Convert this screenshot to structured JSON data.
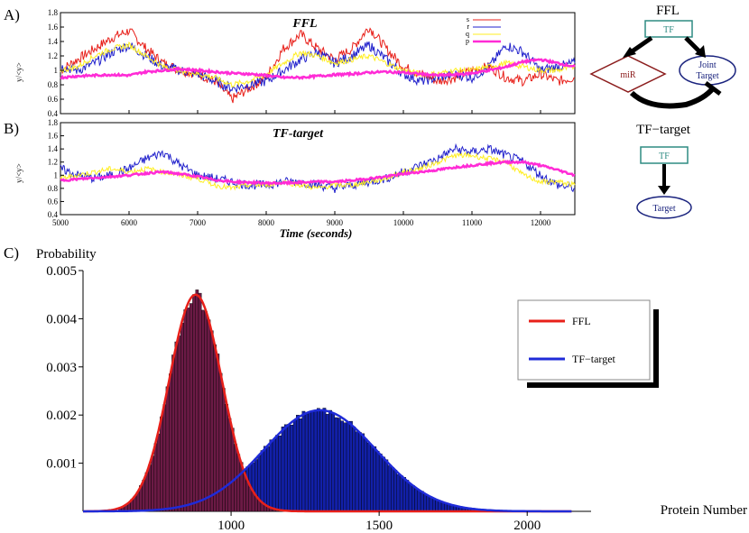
{
  "panels": {
    "a_label": "A)",
    "b_label": "B)",
    "c_label": "C)"
  },
  "network": {
    "ffl_title": "FFL",
    "tf_target_title": "TF−target",
    "tf_label": "TF",
    "mir_label": "miR",
    "joint_target_label_1": "Joint",
    "joint_target_label_2": "Target",
    "target_label": "Target",
    "colors": {
      "tf": "#2e8b82",
      "mir": "#8b1c1c",
      "target": "#1a237e"
    }
  },
  "chart_data": [
    {
      "id": "A",
      "type": "line",
      "title": "FFL",
      "ylabel": "y/<y>",
      "xlabel": "",
      "xlim": [
        5000,
        12500
      ],
      "ylim": [
        0.4,
        1.8
      ],
      "xticks": [
        5000,
        6000,
        7000,
        8000,
        9000,
        10000,
        11000,
        12000
      ],
      "yticks": [
        "0.4",
        "0.6",
        "0.8",
        "1",
        "1.2",
        "1.4",
        "1.6",
        "1.8"
      ],
      "legend": [
        "s",
        "r",
        "q",
        "p"
      ],
      "series": [
        {
          "name": "s",
          "color": "#e8201a",
          "x": [
            5000,
            5250,
            5500,
            5750,
            6000,
            6250,
            6500,
            6750,
            7000,
            7250,
            7500,
            7750,
            8000,
            8250,
            8500,
            8750,
            9000,
            9250,
            9500,
            9750,
            10000,
            10250,
            10500,
            10750,
            11000,
            11250,
            11500,
            11750,
            12000,
            12250,
            12500
          ],
          "y": [
            1.0,
            1.15,
            1.3,
            1.45,
            1.55,
            1.3,
            1.1,
            1.0,
            0.95,
            0.85,
            0.6,
            0.75,
            0.9,
            1.3,
            1.5,
            1.3,
            1.15,
            1.3,
            1.6,
            1.3,
            1.05,
            0.95,
            0.85,
            0.9,
            1.0,
            1.05,
            0.9,
            0.85,
            0.95,
            0.85,
            0.9
          ]
        },
        {
          "name": "r",
          "color": "#2222cc",
          "x": [
            5000,
            5250,
            5500,
            5750,
            6000,
            6250,
            6500,
            6750,
            7000,
            7250,
            7500,
            7750,
            8000,
            8250,
            8500,
            8750,
            9000,
            9250,
            9500,
            9750,
            10000,
            10250,
            10500,
            10750,
            11000,
            11250,
            11500,
            11750,
            12000,
            12250,
            12500
          ],
          "y": [
            1.05,
            1.0,
            1.1,
            1.25,
            1.35,
            1.2,
            1.05,
            1.0,
            0.95,
            0.85,
            0.75,
            0.8,
            0.85,
            1.0,
            1.15,
            1.25,
            1.1,
            1.2,
            1.35,
            1.15,
            0.95,
            0.85,
            0.9,
            0.95,
            0.9,
            1.05,
            1.35,
            1.25,
            1.0,
            1.05,
            1.1
          ]
        },
        {
          "name": "q",
          "color": "#ffee22",
          "x": [
            5000,
            5250,
            5500,
            5750,
            6000,
            6250,
            6500,
            6750,
            7000,
            7250,
            7500,
            7750,
            8000,
            8250,
            8500,
            8750,
            9000,
            9250,
            9500,
            9750,
            10000,
            10250,
            10500,
            10750,
            11000,
            11250,
            11500,
            11750,
            12000,
            12250,
            12500
          ],
          "y": [
            1.0,
            1.05,
            1.2,
            1.3,
            1.35,
            1.2,
            1.05,
            1.0,
            0.95,
            0.9,
            0.8,
            0.85,
            0.95,
            1.1,
            1.25,
            1.2,
            1.1,
            1.15,
            1.2,
            1.1,
            1.0,
            0.95,
            0.95,
            1.0,
            1.0,
            1.05,
            1.1,
            1.05,
            1.0,
            1.0,
            1.05
          ]
        },
        {
          "name": "p",
          "color": "#ff2bd6",
          "x": [
            5000,
            5250,
            5500,
            5750,
            6000,
            6250,
            6500,
            6750,
            7000,
            7250,
            7500,
            7750,
            8000,
            8250,
            8500,
            8750,
            9000,
            9250,
            9500,
            9750,
            10000,
            10250,
            10500,
            10750,
            11000,
            11250,
            11500,
            11750,
            12000,
            12250,
            12500
          ],
          "y": [
            0.9,
            0.92,
            0.93,
            0.94,
            0.93,
            0.98,
            1.0,
            1.02,
            1.0,
            0.98,
            0.96,
            0.95,
            0.93,
            0.9,
            0.9,
            0.92,
            0.94,
            0.95,
            0.97,
            0.98,
            0.97,
            0.95,
            0.93,
            0.94,
            0.96,
            1.0,
            1.05,
            1.12,
            1.15,
            1.1,
            1.05
          ]
        }
      ]
    },
    {
      "id": "B",
      "type": "line",
      "title": "TF-target",
      "ylabel": "y/<y>",
      "xlabel": "Time (seconds)",
      "xlim": [
        5000,
        12500
      ],
      "ylim": [
        0.4,
        1.8
      ],
      "xticks": [
        5000,
        6000,
        7000,
        8000,
        9000,
        10000,
        11000,
        12000
      ],
      "yticks": [
        "0.4",
        "0.6",
        "0.8",
        "1",
        "1.2",
        "1.4",
        "1.6",
        "1.8"
      ],
      "series": [
        {
          "name": "r",
          "color": "#2222cc",
          "x": [
            5000,
            5250,
            5500,
            5750,
            6000,
            6250,
            6500,
            6750,
            7000,
            7250,
            7500,
            7750,
            8000,
            8250,
            8500,
            8750,
            9000,
            9250,
            9500,
            9750,
            10000,
            10250,
            10500,
            10750,
            11000,
            11250,
            11500,
            11750,
            12000,
            12250,
            12500
          ],
          "y": [
            1.1,
            1.0,
            0.95,
            1.0,
            1.1,
            1.25,
            1.35,
            1.15,
            1.0,
            0.95,
            0.9,
            0.85,
            0.85,
            0.9,
            0.9,
            0.85,
            0.8,
            0.85,
            0.9,
            0.95,
            1.05,
            1.15,
            1.25,
            1.4,
            1.35,
            1.4,
            1.3,
            1.2,
            1.0,
            0.85,
            0.8
          ]
        },
        {
          "name": "q",
          "color": "#ffee22",
          "x": [
            5000,
            5250,
            5500,
            5750,
            6000,
            6250,
            6500,
            6750,
            7000,
            7250,
            7500,
            7750,
            8000,
            8250,
            8500,
            8750,
            9000,
            9250,
            9500,
            9750,
            10000,
            10250,
            10500,
            10750,
            11000,
            11250,
            11500,
            11750,
            12000,
            12250,
            12500
          ],
          "y": [
            0.95,
            1.0,
            1.05,
            1.1,
            1.05,
            1.1,
            1.05,
            1.0,
            0.95,
            0.85,
            0.8,
            0.85,
            0.85,
            0.9,
            0.85,
            0.8,
            0.85,
            0.85,
            0.9,
            0.95,
            1.05,
            1.1,
            1.2,
            1.3,
            1.3,
            1.25,
            1.2,
            1.0,
            0.9,
            0.9,
            0.85
          ]
        },
        {
          "name": "p",
          "color": "#ff2bd6",
          "x": [
            5000,
            5250,
            5500,
            5750,
            6000,
            6250,
            6500,
            6750,
            7000,
            7250,
            7500,
            7750,
            8000,
            8250,
            8500,
            8750,
            9000,
            9250,
            9500,
            9750,
            10000,
            10250,
            10500,
            10750,
            11000,
            11250,
            11500,
            11750,
            12000,
            12250,
            12500
          ],
          "y": [
            0.92,
            0.94,
            0.96,
            0.98,
            1.0,
            1.03,
            1.05,
            1.02,
            0.98,
            0.93,
            0.9,
            0.89,
            0.88,
            0.88,
            0.89,
            0.9,
            0.9,
            0.92,
            0.95,
            0.98,
            1.02,
            1.05,
            1.08,
            1.12,
            1.15,
            1.18,
            1.2,
            1.2,
            1.15,
            1.08,
            1.0
          ]
        }
      ]
    },
    {
      "id": "C",
      "type": "bar",
      "title": "Probability",
      "xlabel": "Protein Number",
      "ylabel": "Probability",
      "xlim": [
        500,
        2170
      ],
      "ylim": [
        0,
        0.005
      ],
      "xticks": [
        1000,
        1500,
        2000
      ],
      "yticks": [
        "0.001",
        "0.002",
        "0.003",
        "0.004",
        "0.005"
      ],
      "legend": [
        "FFL",
        "TF−target"
      ],
      "series": [
        {
          "name": "FFL",
          "color": "#e8201a",
          "bar_color": "#6b1a45",
          "mean": 880,
          "sd": 89,
          "peak": 0.0045,
          "range": [
            620,
            1180
          ]
        },
        {
          "name": "TF−target",
          "color": "#1f2bd8",
          "bar_color": "#1220a8",
          "mean": 1300,
          "sd": 190,
          "peak": 0.0021,
          "range": [
            700,
            2100
          ]
        }
      ]
    }
  ]
}
